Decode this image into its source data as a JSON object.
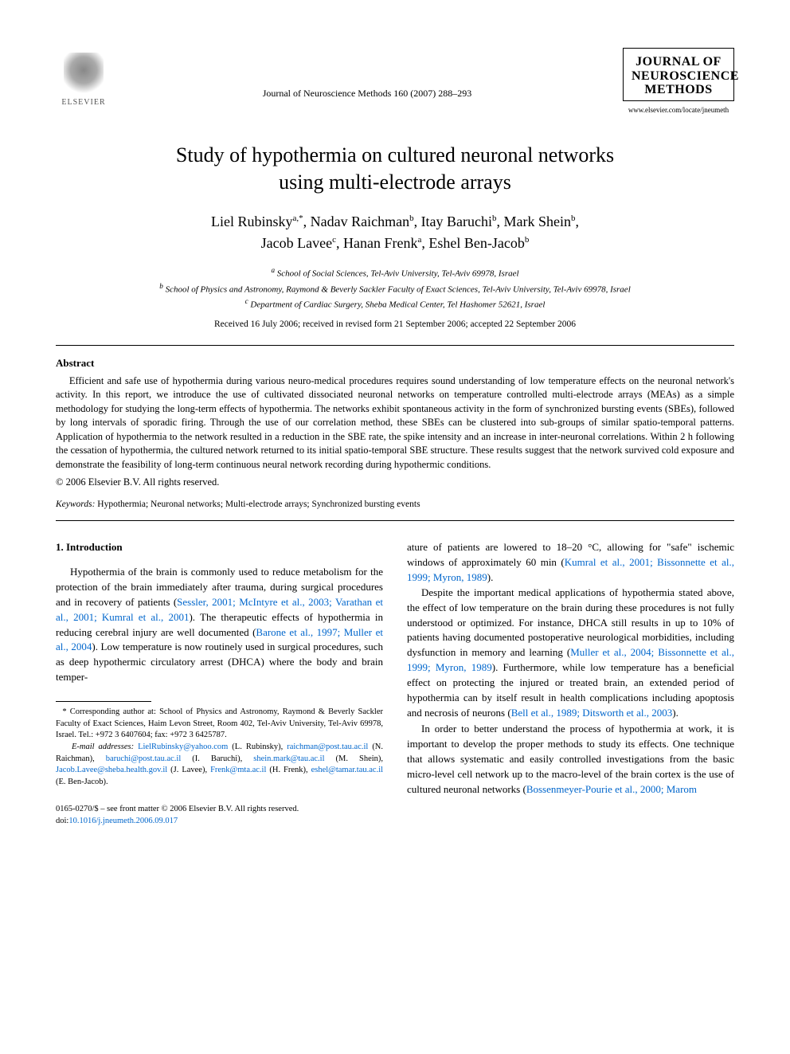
{
  "header": {
    "publisher": "ELSEVIER",
    "journal_ref": "Journal of Neuroscience Methods 160 (2007) 288–293",
    "journal_box_title": "JOURNAL OF NEUROSCIENCE METHODS",
    "journal_url": "www.elsevier.com/locate/jneumeth"
  },
  "title_line1": "Study of hypothermia on cultured neuronal networks",
  "title_line2": "using multi-electrode arrays",
  "authors": {
    "a1": {
      "name": "Liel Rubinsky",
      "sup": "a,*"
    },
    "a2": {
      "name": "Nadav Raichman",
      "sup": "b"
    },
    "a3": {
      "name": "Itay Baruchi",
      "sup": "b"
    },
    "a4": {
      "name": "Mark Shein",
      "sup": "b"
    },
    "a5": {
      "name": "Jacob Lavee",
      "sup": "c"
    },
    "a6": {
      "name": "Hanan Frenk",
      "sup": "a"
    },
    "a7": {
      "name": "Eshel Ben-Jacob",
      "sup": "b"
    }
  },
  "affiliations": {
    "a": "School of Social Sciences, Tel-Aviv University, Tel-Aviv 69978, Israel",
    "b": "School of Physics and Astronomy, Raymond & Beverly Sackler Faculty of Exact Sciences, Tel-Aviv University, Tel-Aviv 69978, Israel",
    "c": "Department of Cardiac Surgery, Sheba Medical Center, Tel Hashomer 52621, Israel"
  },
  "dates": "Received 16 July 2006; received in revised form 21 September 2006; accepted 22 September 2006",
  "abstract": {
    "heading": "Abstract",
    "text": "Efficient and safe use of hypothermia during various neuro-medical procedures requires sound understanding of low temperature effects on the neuronal network's activity. In this report, we introduce the use of cultivated dissociated neuronal networks on temperature controlled multi-electrode arrays (MEAs) as a simple methodology for studying the long-term effects of hypothermia. The networks exhibit spontaneous activity in the form of synchronized bursting events (SBEs), followed by long intervals of sporadic firing. Through the use of our correlation method, these SBEs can be clustered into sub-groups of similar spatio-temporal patterns. Application of hypothermia to the network resulted in a reduction in the SBE rate, the spike intensity and an increase in inter-neuronal correlations. Within 2 h following the cessation of hypothermia, the cultured network returned to its initial spatio-temporal SBE structure. These results suggest that the network survived cold exposure and demonstrate the feasibility of long-term continuous neural network recording during hypothermic conditions.",
    "copyright": "© 2006 Elsevier B.V. All rights reserved."
  },
  "keywords": {
    "label": "Keywords:",
    "text": "Hypothermia; Neuronal networks; Multi-electrode arrays; Synchronized bursting events"
  },
  "section1": {
    "heading": "1. Introduction",
    "col1_p1_pre": "Hypothermia of the brain is commonly used to reduce metabolism for the protection of the brain immediately after trauma, during surgical procedures and in recovery of patients (",
    "col1_p1_link1": "Sessler, 2001; McIntyre et al., 2003; Varathan et al., 2001; Kumral et al., 2001",
    "col1_p1_mid": "). The therapeutic effects of hypothermia in reducing cerebral injury are well documented (",
    "col1_p1_link2": "Barone et al., 1997; Muller et al., 2004",
    "col1_p1_post": "). Low temperature is now routinely used in surgical procedures, such as deep hypothermic circulatory arrest (DHCA) where the body and brain temper-",
    "col2_p1_pre": "ature of patients are lowered to 18–20 °C, allowing for \"safe\" ischemic windows of approximately 60 min (",
    "col2_p1_link": "Kumral et al., 2001; Bissonnette et al., 1999; Myron, 1989",
    "col2_p1_post": ").",
    "col2_p2_pre": "Despite the important medical applications of hypothermia stated above, the effect of low temperature on the brain during these procedures is not fully understood or optimized. For instance, DHCA still results in up to 10% of patients having documented postoperative neurological morbidities, including dysfunction in memory and learning (",
    "col2_p2_link": "Muller et al., 2004; Bissonnette et al., 1999; Myron, 1989",
    "col2_p2_mid": "). Furthermore, while low temperature has a beneficial effect on protecting the injured or treated brain, an extended period of hypothermia can by itself result in health complications including apoptosis and necrosis of neurons (",
    "col2_p2_link2": "Bell et al., 1989; Ditsworth et al., 2003",
    "col2_p2_post": ").",
    "col2_p3_pre": "In order to better understand the process of hypothermia at work, it is important to develop the proper methods to study its effects. One technique that allows systematic and easily controlled investigations from the basic micro-level cell network up to the macro-level of the brain cortex is the use of cultured neuronal networks (",
    "col2_p3_link": "Bossenmeyer-Pourie et al., 2000; Marom"
  },
  "footnotes": {
    "corresponding": "Corresponding author at: School of Physics and Astronomy, Raymond & Beverly Sackler Faculty of Exact Sciences, Haim Levon Street, Room 402, Tel-Aviv University, Tel-Aviv 69978, Israel. Tel.: +972 3 6407604; fax: +972 3 6425787.",
    "email_label": "E-mail addresses:",
    "emails": {
      "e1": {
        "addr": "LielRubinsky@yahoo.com",
        "who": "(L. Rubinsky),"
      },
      "e2": {
        "addr": "raichman@post.tau.ac.il",
        "who": "(N. Raichman),"
      },
      "e3": {
        "addr": "baruchi@post.tau.ac.il",
        "who": "(I. Baruchi),"
      },
      "e4": {
        "addr": "shein.mark@tau.ac.il",
        "who": "(M. Shein),"
      },
      "e5": {
        "addr": "Jacob.Lavee@sheba.health.gov.il",
        "who": "(J. Lavee),"
      },
      "e6": {
        "addr": "Frenk@mta.ac.il",
        "who": "(H. Frenk),"
      },
      "e7": {
        "addr": "eshel@tamar.tau.ac.il",
        "who": "(E. Ben-Jacob)."
      }
    }
  },
  "footer": {
    "issn": "0165-0270/$ – see front matter © 2006 Elsevier B.V. All rights reserved.",
    "doi_label": "doi:",
    "doi": "10.1016/j.jneumeth.2006.09.017"
  },
  "colors": {
    "link": "#0066cc",
    "text": "#000000",
    "background": "#ffffff"
  }
}
